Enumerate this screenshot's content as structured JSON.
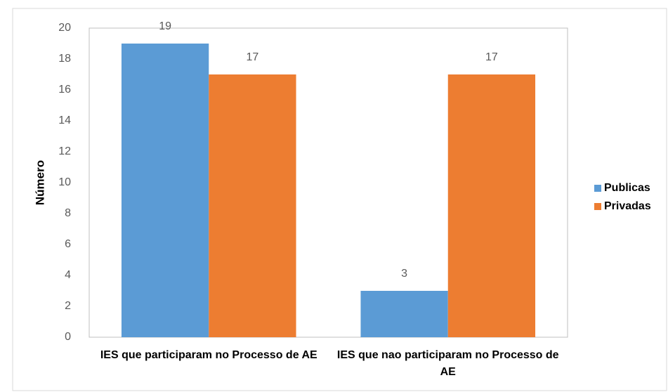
{
  "chart_data": {
    "type": "bar",
    "categories": [
      "IES que participaram no Processo de AE",
      "IES que nao participaram no Processo de AE"
    ],
    "series": [
      {
        "name": "Publicas",
        "color": "#5b9bd5",
        "values": [
          19,
          3
        ]
      },
      {
        "name": "Privadas",
        "color": "#ed7d31",
        "values": [
          17,
          17
        ]
      }
    ],
    "ylabel": "Número",
    "ylim": [
      0,
      20
    ],
    "yticks": [
      0,
      2,
      4,
      6,
      8,
      10,
      12,
      14,
      16,
      18,
      20
    ],
    "grid": false,
    "legend": "right"
  }
}
